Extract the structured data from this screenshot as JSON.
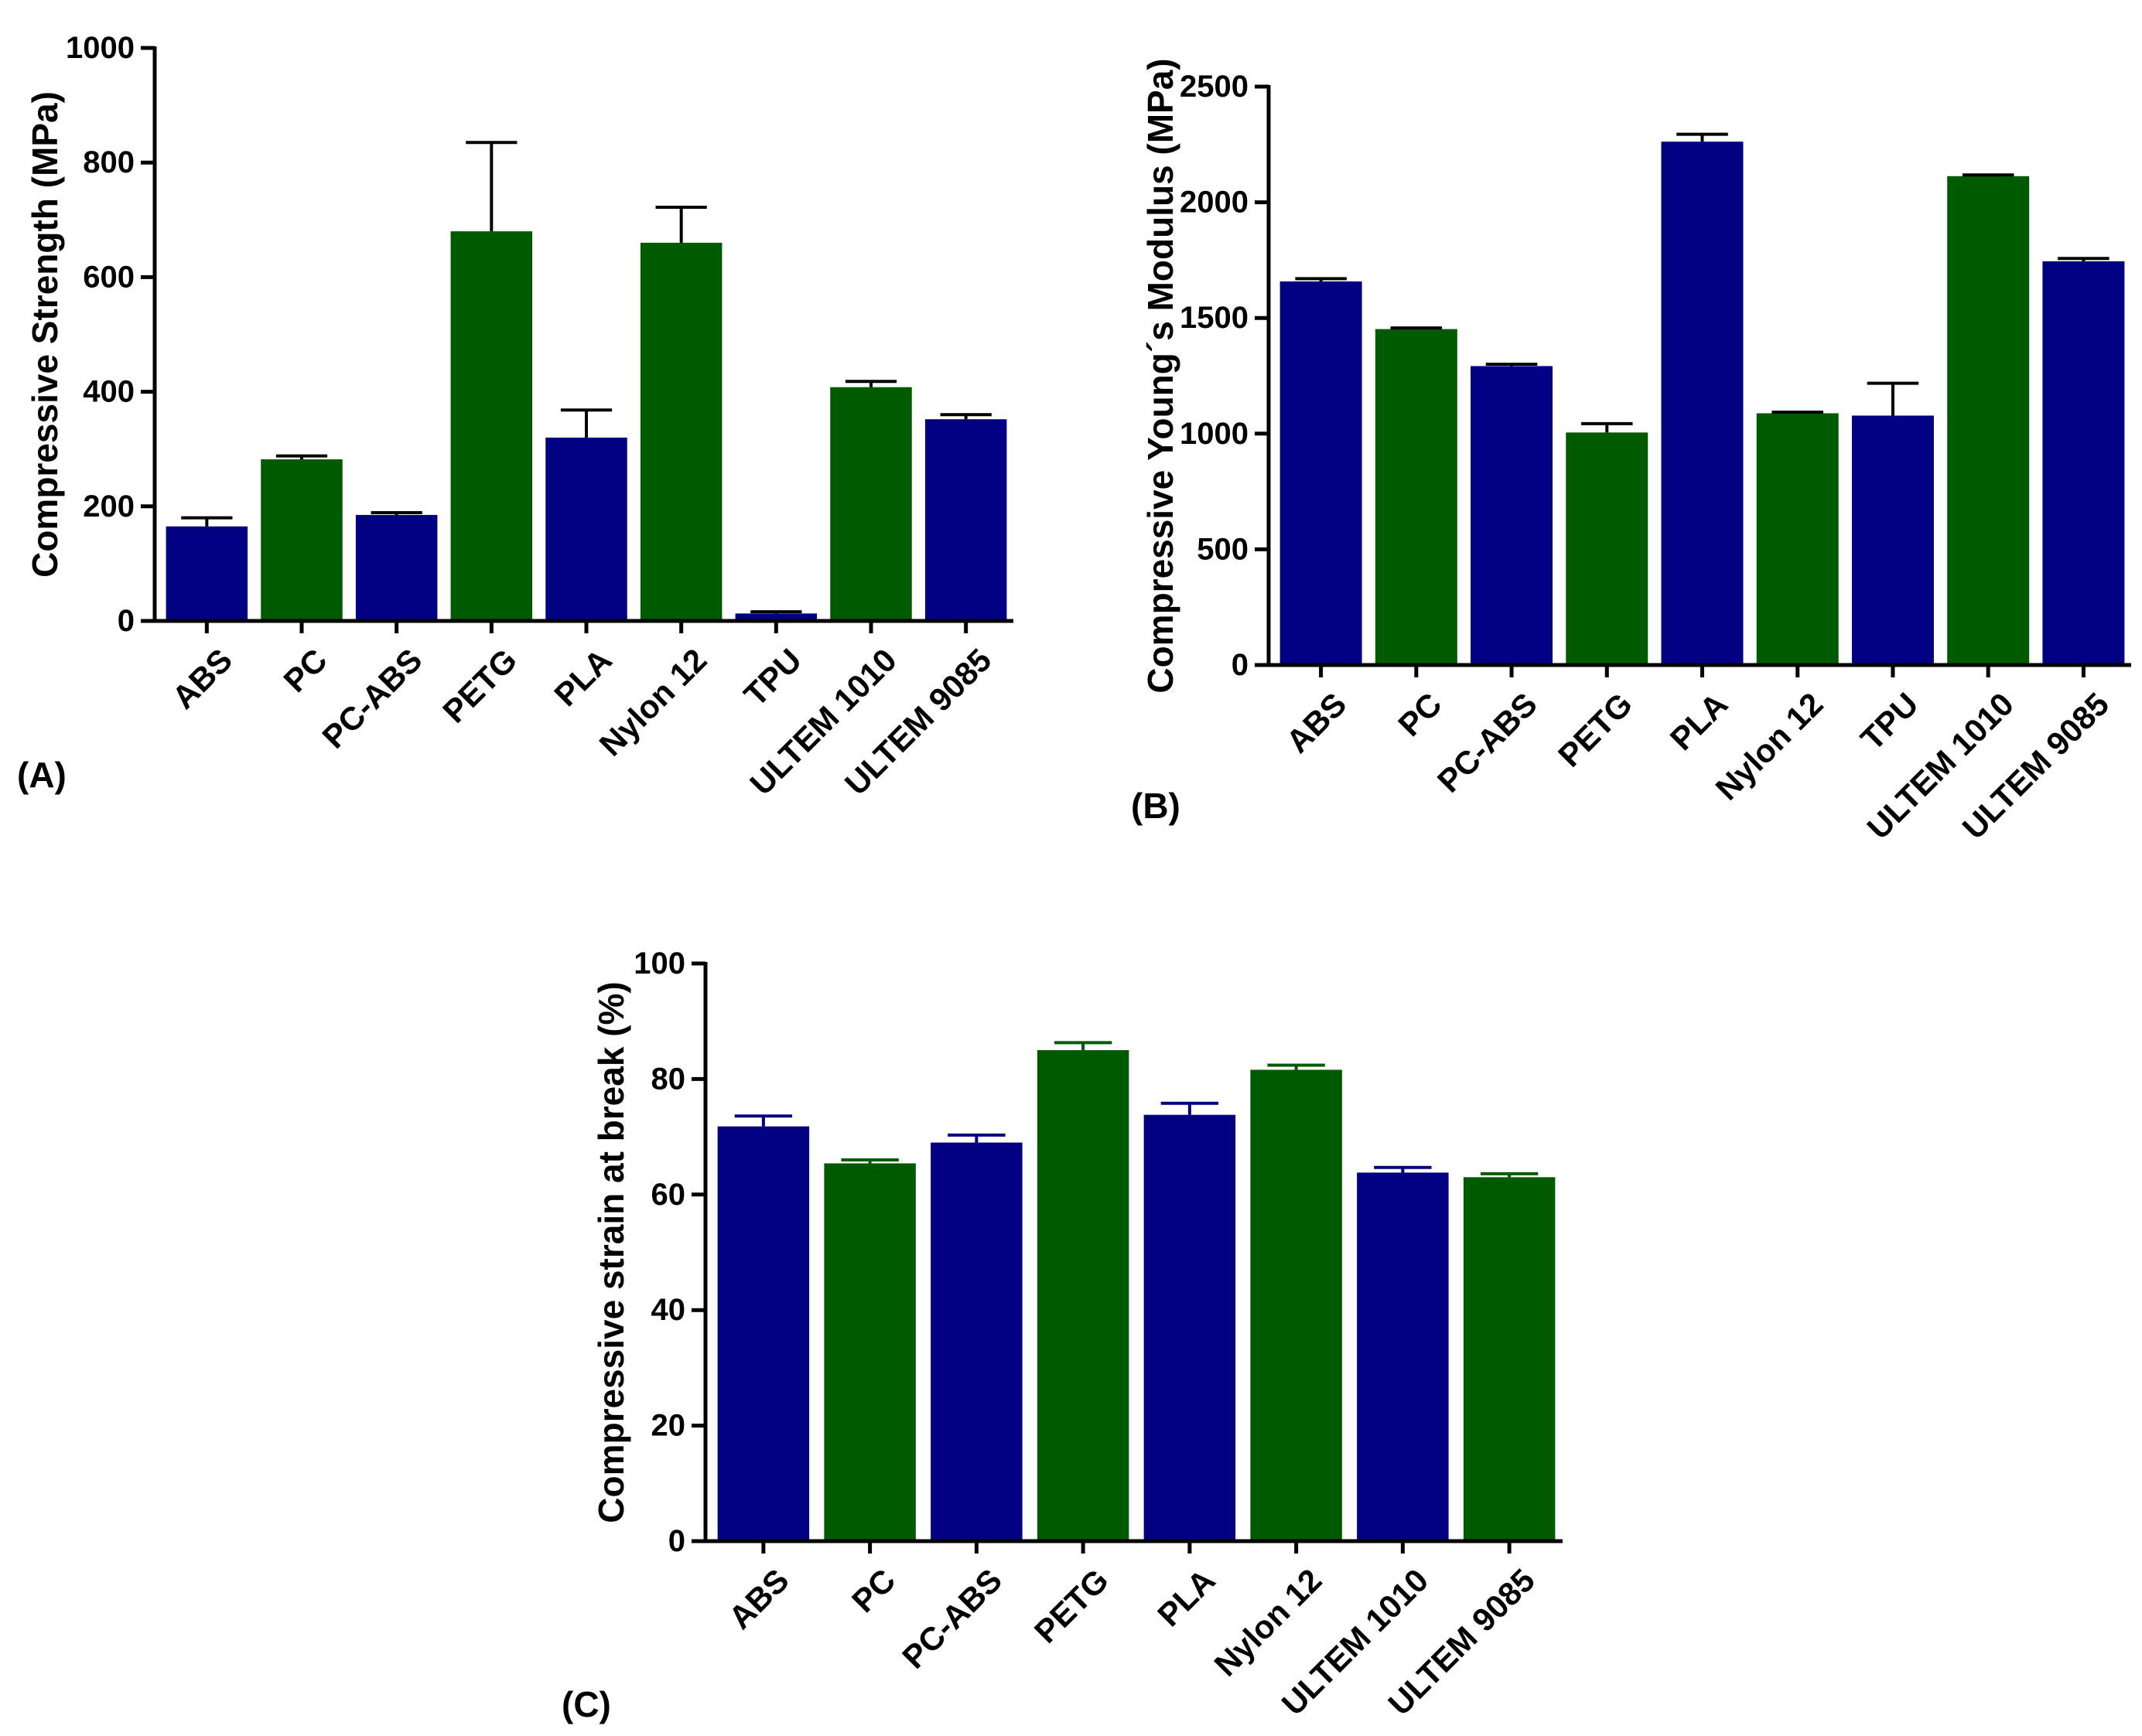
{
  "colors": {
    "blue": "#000080",
    "green": "#005a00",
    "axis": "#000000"
  },
  "chart_data": [
    {
      "type": "bar",
      "panel": "(A)",
      "ylabel": "Compressive Strength (MPa)",
      "xlabel": "",
      "ylim": [
        0,
        1000
      ],
      "yticks": [
        0,
        200,
        400,
        600,
        800,
        1000
      ],
      "categories": [
        "ABS",
        "PC",
        "PC-ABS",
        "PETG",
        "PLA",
        "Nylon 12",
        "TPU",
        "ULTEM 1010",
        "ULTEM 9085"
      ],
      "values": [
        165,
        282,
        185,
        680,
        320,
        660,
        13,
        408,
        352
      ],
      "errors": [
        15,
        6,
        4,
        155,
        48,
        62,
        3,
        10,
        8
      ],
      "bar_colors": [
        "blue",
        "green",
        "blue",
        "green",
        "blue",
        "green",
        "blue",
        "green",
        "blue"
      ],
      "error_color": "axis"
    },
    {
      "type": "bar",
      "panel": "(B)",
      "ylabel": "Compressive Young´s Modulus (MPa)",
      "xlabel": "",
      "ylim": [
        0,
        2500
      ],
      "yticks": [
        0,
        500,
        1000,
        1500,
        2000,
        2500
      ],
      "categories": [
        "ABS",
        "PC",
        "PC-ABS",
        "PETG",
        "PLA",
        "Nylon 12",
        "TPU",
        "ULTEM 1010",
        "ULTEM 9085"
      ],
      "values": [
        1658,
        1452,
        1292,
        1005,
        2262,
        1088,
        1078,
        2113,
        1745
      ],
      "errors": [
        12,
        5,
        8,
        38,
        32,
        5,
        140,
        5,
        12
      ],
      "bar_colors": [
        "blue",
        "green",
        "blue",
        "green",
        "blue",
        "green",
        "blue",
        "green",
        "blue"
      ],
      "error_color": "axis"
    },
    {
      "type": "bar",
      "panel": "(C)",
      "ylabel": "Compressive strain at break (%)",
      "xlabel": "",
      "ylim": [
        0,
        100
      ],
      "yticks": [
        0,
        20,
        40,
        60,
        80,
        100
      ],
      "categories": [
        "ABS",
        "PC",
        "PC-ABS",
        "PETG",
        "PLA",
        "Nylon 12",
        "ULTEM 1010",
        "ULTEM 9085"
      ],
      "values": [
        71.8,
        65.4,
        69.0,
        85.0,
        73.8,
        81.6,
        63.8,
        63.0
      ],
      "errors": [
        1.8,
        0.6,
        1.3,
        1.3,
        2.0,
        0.8,
        0.9,
        0.6
      ],
      "bar_colors": [
        "blue",
        "green",
        "blue",
        "green",
        "blue",
        "green",
        "blue",
        "green"
      ],
      "error_color": "same"
    }
  ]
}
